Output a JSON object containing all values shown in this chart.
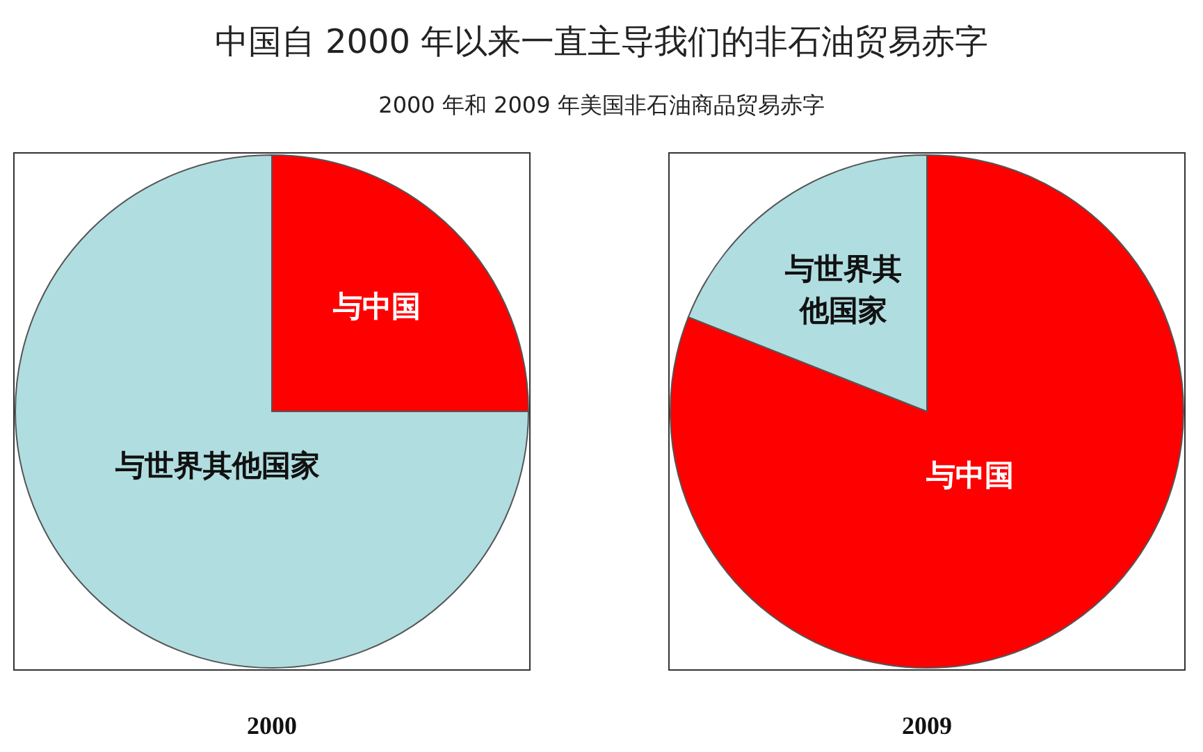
{
  "chart_data": [
    {
      "type": "pie",
      "title": "中国自 2000 年以来一直主导我们的非石油贸易赤字",
      "subtitle": "2000 年和 2009 年美国非石油商品贸易赤字",
      "xlabel": "2000",
      "categories": [
        "与中国",
        "与世界其他国家"
      ],
      "values": [
        25,
        75
      ],
      "colors": [
        "#ff0000",
        "#b0dde0"
      ]
    },
    {
      "type": "pie",
      "xlabel": "2009",
      "categories": [
        "与中国",
        "与世界其他国家"
      ],
      "values": [
        81,
        19
      ],
      "colors": [
        "#ff0000",
        "#b0dde0"
      ]
    }
  ]
}
